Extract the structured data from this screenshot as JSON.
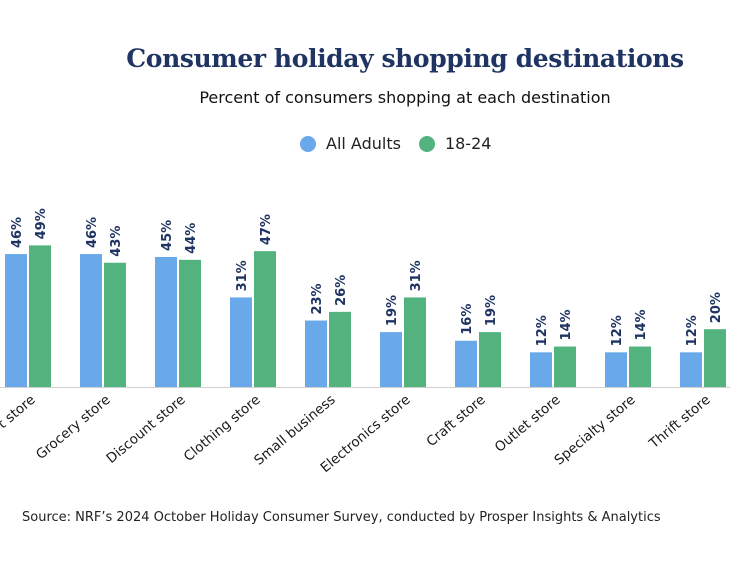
{
  "chart_data": {
    "type": "bar",
    "title": "Consumer holiday shopping destinations",
    "subtitle": "Percent of consumers shopping at each destination",
    "categories": [
      "t store",
      "Grocery store",
      "Discount store",
      "Clothing store",
      "Small business",
      "Electronics store",
      "Craft store",
      "Outlet store",
      "Specialty store",
      "Thrift store"
    ],
    "series": [
      {
        "name": "All Adults",
        "color": "#6aa9e9",
        "values": [
          46,
          46,
          45,
          31,
          23,
          19,
          16,
          12,
          12,
          12
        ]
      },
      {
        "name": "18-24",
        "color": "#52b37f",
        "values": [
          49,
          43,
          44,
          47,
          26,
          31,
          19,
          14,
          14,
          20
        ]
      }
    ],
    "value_suffix": "%",
    "ylim": [
      0,
      60
    ],
    "xlabel": "",
    "ylabel": "",
    "grid": false,
    "legend_position": "top-center",
    "data_label_color": "#1f3462",
    "title_color": "#1f3462"
  },
  "source": "Source: NRF’s 2024 October Holiday Consumer Survey, conducted by Prosper Insights & Analytics"
}
